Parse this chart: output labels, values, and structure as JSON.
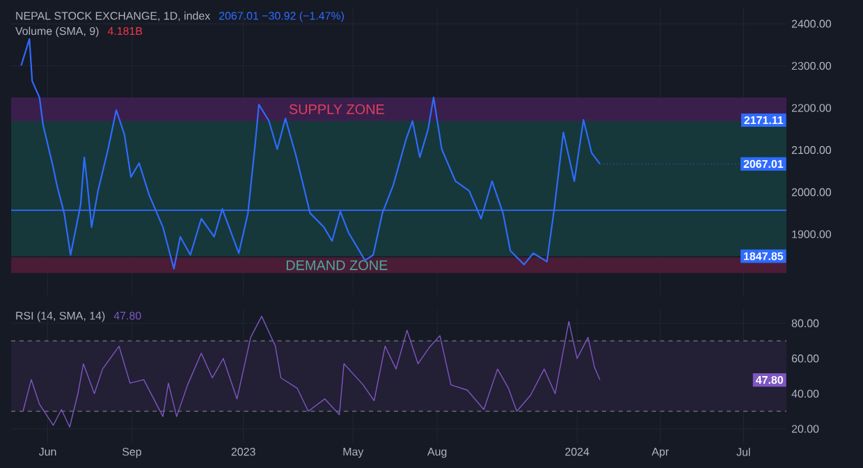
{
  "chart_data": [
    {
      "type": "line",
      "title": "NEPAL STOCK EXCHANGE, 1D, index",
      "subtitle": "Volume (SMA, 9)",
      "annotations": [
        "2067.01  −30.92 (−1.47%)",
        "4.181B",
        {
          "text": "2171.11",
          "y": 2171.11
        },
        {
          "text": "2067.01",
          "x": "2024-01-26",
          "y": 2067.01
        },
        {
          "text": "1847.85",
          "y": 1847.85
        }
      ],
      "x": [
        "2022-05-03",
        "2022-05-12",
        "2022-05-15",
        "2022-05-23",
        "2022-05-27",
        "2022-06-07",
        "2022-06-11",
        "2022-06-19",
        "2022-06-26",
        "2022-07-07",
        "2022-07-11",
        "2022-07-14",
        "2022-07-19",
        "2022-07-26",
        "2022-08-06",
        "2022-08-15",
        "2022-08-24",
        "2022-08-31",
        "2022-09-09",
        "2022-09-20",
        "2022-10-05",
        "2022-10-17",
        "2022-10-24",
        "2022-11-04",
        "2022-11-16",
        "2022-11-30",
        "2022-12-09",
        "2022-12-27",
        "2023-01-06",
        "2023-01-14",
        "2023-01-18",
        "2023-01-29",
        "2023-02-07",
        "2023-02-16",
        "2023-02-28",
        "2023-03-15",
        "2023-03-30",
        "2023-04-08",
        "2023-04-17",
        "2023-04-26",
        "2023-05-14",
        "2023-05-23",
        "2023-06-02",
        "2023-06-14",
        "2023-06-28",
        "2023-07-05",
        "2023-07-13",
        "2023-07-22",
        "2023-07-28",
        "2023-08-06",
        "2023-08-21",
        "2023-09-05",
        "2023-09-18",
        "2023-09-30",
        "2023-10-12",
        "2023-10-20",
        "2023-11-04",
        "2023-11-14",
        "2023-11-29",
        "2023-12-07",
        "2023-12-17",
        "2023-12-29",
        "2024-01-08",
        "2024-01-17",
        "2024-01-26"
      ],
      "series": [
        {
          "color": "#2f6bff",
          "values": [
            2301,
            2364,
            2264,
            2225,
            2159,
            2059,
            2017,
            1950,
            1851,
            1970,
            2083,
            2026,
            1917,
            2003,
            2102,
            2195,
            2136,
            2036,
            2069,
            1993,
            1917,
            1818,
            1894,
            1851,
            1937,
            1894,
            1960,
            1855,
            1950,
            2116,
            2208,
            2169,
            2102,
            2175,
            2083,
            1950,
            1917,
            1884,
            1954,
            1904,
            1838,
            1851,
            1950,
            2017,
            2126,
            2169,
            2083,
            2149,
            2225,
            2102,
            2026,
            2003,
            1937,
            2026,
            1950,
            1861,
            1828,
            1855,
            1835,
            1960,
            2142,
            2026,
            2172,
            2093,
            2067.01
          ]
        }
      ],
      "bands": [
        {
          "axis": "y",
          "from": 1847.85,
          "to": 2171.11,
          "color": "#16383a"
        },
        {
          "axis": "y",
          "from": 2169,
          "to": 2225,
          "label": "SUPPLY ZONE",
          "color": "#3a1f4c"
        },
        {
          "axis": "y",
          "from": 1808,
          "to": 1845,
          "label": "DEMAND ZONE",
          "color": "#4a1c36"
        }
      ],
      "ref_lines": [
        {
          "axis": "y",
          "value": 1957,
          "color": "#2f6bff"
        }
      ],
      "xlim": [
        "2022-04-22",
        "2024-08-17"
      ],
      "xticks": [
        {
          "value": "2022-06-01",
          "label": null
        },
        {
          "value": "2022-09-01",
          "label": null
        },
        {
          "value": "2023-01-01",
          "label": null
        },
        {
          "value": "2023-05-01",
          "label": null
        },
        {
          "value": "2023-08-01",
          "label": null
        },
        {
          "value": "2024-01-01",
          "label": null
        },
        {
          "value": "2024-04-01",
          "label": null
        },
        {
          "value": "2024-07-01",
          "label": null
        }
      ],
      "ylim": [
        1755,
        2440
      ],
      "yticks": [
        {
          "value": 1900,
          "label": "1900.00"
        },
        {
          "value": 2000,
          "label": "2000.00"
        },
        {
          "value": 2100,
          "label": "2100.00"
        },
        {
          "value": 2200,
          "label": "2200.00"
        },
        {
          "value": 2300,
          "label": "2300.00"
        },
        {
          "value": 2400,
          "label": "2400.00"
        }
      ],
      "tick_labels": "y",
      "grid": true
    },
    {
      "type": "line",
      "title": "RSI (14, SMA, 14)",
      "annotations": [
        "47.80",
        {
          "text": "47.80",
          "y": 47.8
        }
      ],
      "x": [
        "2022-05-05",
        "2022-05-14",
        "2022-05-23",
        "2022-06-07",
        "2022-06-16",
        "2022-06-25",
        "2022-07-04",
        "2022-07-10",
        "2022-07-22",
        "2022-07-31",
        "2022-08-18",
        "2022-08-30",
        "2022-09-14",
        "2022-10-05",
        "2022-10-11",
        "2022-10-20",
        "2022-11-01",
        "2022-11-16",
        "2022-11-28",
        "2022-12-10",
        "2022-12-25",
        "2023-01-09",
        "2023-01-21",
        "2023-02-05",
        "2023-02-11",
        "2023-03-01",
        "2023-03-13",
        "2023-03-31",
        "2023-04-16",
        "2023-04-21",
        "2023-05-12",
        "2023-05-24",
        "2023-06-05",
        "2023-06-17",
        "2023-06-29",
        "2023-07-11",
        "2023-07-23",
        "2023-08-04",
        "2023-08-16",
        "2023-09-03",
        "2023-09-21",
        "2023-10-06",
        "2023-10-18",
        "2023-10-27",
        "2023-11-11",
        "2023-11-26",
        "2023-12-08",
        "2023-12-23",
        "2024-01-01",
        "2024-01-13",
        "2024-01-20",
        "2024-01-26"
      ],
      "series": [
        {
          "color": "#7e57c2",
          "values": [
            30,
            48,
            34,
            22,
            31,
            21,
            40,
            57,
            40,
            54,
            67,
            46,
            48,
            27,
            46,
            27,
            45,
            63,
            49,
            60,
            37,
            72,
            84,
            67,
            49,
            43,
            30,
            37,
            28,
            57,
            45,
            36,
            67,
            54,
            76,
            57,
            66,
            73,
            45,
            42,
            31,
            54,
            43,
            30,
            39,
            54,
            40,
            81,
            60,
            72,
            55,
            47.8
          ]
        }
      ],
      "bands": [
        {
          "axis": "y",
          "from": 30,
          "to": 70,
          "color": "#231f35"
        }
      ],
      "ref_lines": [
        {
          "axis": "y",
          "value": 30,
          "color": "#6a6d78",
          "line_style": "dashed"
        },
        {
          "axis": "y",
          "value": 70,
          "color": "#6a6d78",
          "line_style": "dashed"
        }
      ],
      "xlim": [
        "2022-04-22",
        "2024-08-17"
      ],
      "xticks": [
        {
          "value": "2022-06-01",
          "label": "Jun"
        },
        {
          "value": "2022-09-01",
          "label": "Sep"
        },
        {
          "value": "2023-01-01",
          "label": "2023"
        },
        {
          "value": "2023-05-01",
          "label": "May"
        },
        {
          "value": "2023-08-01",
          "label": "Aug"
        },
        {
          "value": "2024-01-01",
          "label": "2024"
        },
        {
          "value": "2024-04-01",
          "label": "Apr"
        },
        {
          "value": "2024-07-01",
          "label": "Jul"
        }
      ],
      "ylim": [
        12,
        88
      ],
      "yticks": [
        {
          "value": 20,
          "label": "20.00"
        },
        {
          "value": 40,
          "label": "40.00"
        },
        {
          "value": 60,
          "label": "60.00"
        },
        {
          "value": 80,
          "label": "80.00"
        }
      ],
      "grid": true
    }
  ]
}
